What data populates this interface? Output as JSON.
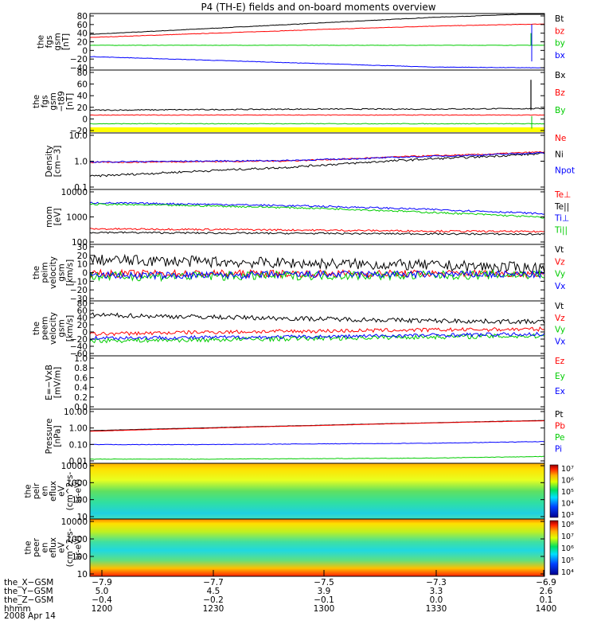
{
  "title": "P4 (TH-E) fields and on-board moments overview",
  "colors": {
    "black": "#000000",
    "red": "#ff0000",
    "green": "#00cc00",
    "blue": "#0000ff",
    "yellow": "#ffff00"
  },
  "chart_data": [
    {
      "type": "line",
      "ylabel": [
        "the",
        "fgs",
        "gsm",
        "[nT]"
      ],
      "yticks": [
        "80",
        "60",
        "40",
        "20",
        "0",
        "−20",
        "−40"
      ],
      "ylim": [
        -45,
        85
      ],
      "series": [
        {
          "name": "Bt",
          "color": "#000000",
          "values": [
            37,
            50,
            63,
            76,
            85
          ],
          "noise": 0.5
        },
        {
          "name": "bz",
          "color": "#ff0000",
          "values": [
            30,
            39,
            48,
            56,
            61
          ],
          "noise": 0.5
        },
        {
          "name": "by",
          "color": "#00cc00",
          "values": [
            12,
            12,
            12,
            12,
            12
          ],
          "noise": 0.4
        },
        {
          "name": "bx",
          "color": "#0000ff",
          "values": [
            -14,
            -22,
            -30,
            -38,
            -40
          ],
          "noise": 0.5
        }
      ]
    },
    {
      "type": "line",
      "ylabel": [
        "the",
        "fgs",
        "gsm",
        "−t89",
        "[nT]"
      ],
      "yticks": [
        "80",
        "60",
        "40",
        "20",
        "0",
        "−20"
      ],
      "ylim": [
        -28,
        88
      ],
      "series": [
        {
          "name": "Bx",
          "color": "#000000",
          "values": [
            14,
            15,
            16,
            16,
            17
          ],
          "noise": 1
        },
        {
          "name": "Bz",
          "color": "#ff0000",
          "values": [
            5,
            5,
            5,
            5,
            5
          ],
          "noise": 0.6
        },
        {
          "name": "By",
          "color": "#00cc00",
          "values": [
            -11,
            -11,
            -11,
            -11,
            -11
          ],
          "noise": 0.6
        }
      ]
    },
    {
      "type": "line",
      "ylabel": [
        "Density",
        "[cm−3]"
      ],
      "yticks": [
        "10.0",
        "1.0",
        "0.1"
      ],
      "ylim": [
        0.1,
        15
      ],
      "log": true,
      "series": [
        {
          "name": "Ne",
          "color": "#ff0000",
          "values": [
            1.1,
            1.15,
            1.2,
            1.25,
            1.5,
            1.9,
            2.2,
            2.8
          ],
          "noise": 0.02
        },
        {
          "name": "Ni",
          "color": "#000000",
          "values": [
            0.32,
            0.42,
            0.55,
            0.7,
            1.0,
            1.4,
            1.8,
            2.4
          ],
          "noise": 0.03
        },
        {
          "name": "Npot",
          "color": "#0000ff",
          "values": [
            1.15,
            1.2,
            1.25,
            1.3,
            1.5,
            1.8,
            2.1,
            2.6
          ],
          "noise": 0.02
        }
      ]
    },
    {
      "type": "line",
      "ylabel": [
        "mom",
        "[eV]"
      ],
      "yticks": [
        "10000",
        "1000",
        "100"
      ],
      "ylim": [
        40,
        12000
      ],
      "log": true,
      "series": [
        {
          "name": "Te⊥",
          "color": "#ff0000",
          "values": [
            200,
            190,
            175,
            160,
            150
          ],
          "noise": 0.03
        },
        {
          "name": "Te||",
          "color": "#000000",
          "values": [
            140,
            130,
            125,
            120,
            115
          ],
          "noise": 0.03
        },
        {
          "name": "Ti⊥",
          "color": "#0000ff",
          "values": [
            3000,
            2600,
            2100,
            1500,
            950
          ],
          "noise": 0.03
        },
        {
          "name": "Ti||",
          "color": "#00cc00",
          "values": [
            2600,
            2200,
            1700,
            1100,
            650
          ],
          "noise": 0.03
        }
      ]
    },
    {
      "type": "line",
      "ylabel": [
        "the",
        "peim",
        "velocity",
        "gsm",
        "[km/s]"
      ],
      "yticks": [
        "30",
        "20",
        "10",
        "0",
        "−10",
        "−20",
        "−30"
      ],
      "ylim": [
        -30,
        32
      ],
      "series": [
        {
          "name": "Vt",
          "color": "#000000",
          "values": [
            15,
            13,
            11,
            9,
            6
          ],
          "noise": 6
        },
        {
          "name": "Vz",
          "color": "#ff0000",
          "values": [
            0,
            0,
            0,
            0,
            0
          ],
          "noise": 4
        },
        {
          "name": "Vy",
          "color": "#00cc00",
          "values": [
            -3,
            -3,
            -2,
            -2,
            -1
          ],
          "noise": 5
        },
        {
          "name": "Vx",
          "color": "#0000ff",
          "values": [
            -2,
            -2,
            -1,
            -1,
            -1
          ],
          "noise": 4
        }
      ]
    },
    {
      "type": "line",
      "ylabel": [
        "the",
        "peem",
        "velocity",
        "gsm",
        "[km/s]"
      ],
      "yticks": [
        "80",
        "60",
        "40",
        "20",
        "0",
        "−20",
        "−40",
        "−60"
      ],
      "ylim": [
        -62,
        82
      ],
      "series": [
        {
          "name": "Vt",
          "color": "#000000",
          "values": [
            45,
            40,
            35,
            30,
            27
          ],
          "noise": 6
        },
        {
          "name": "Vz",
          "color": "#ff0000",
          "values": [
            -5,
            0,
            3,
            6,
            8
          ],
          "noise": 5
        },
        {
          "name": "Vy",
          "color": "#00cc00",
          "values": [
            -22,
            -20,
            -16,
            -12,
            -10
          ],
          "noise": 6
        },
        {
          "name": "Vx",
          "color": "#0000ff",
          "values": [
            -15,
            -14,
            -12,
            -8,
            -5
          ],
          "noise": 5
        }
      ]
    },
    {
      "type": "line",
      "ylabel": [
        "E=−VxB",
        "[mV/m]"
      ],
      "yticks": [
        "1.0",
        "0.8",
        "0.6",
        "0.4",
        "0.2",
        "0.0"
      ],
      "ylim": [
        0,
        1
      ],
      "series": [
        {
          "name": "Ez",
          "color": "#ff0000",
          "values": []
        },
        {
          "name": "Ey",
          "color": "#00cc00",
          "values": []
        },
        {
          "name": "Ex",
          "color": "#0000ff",
          "values": []
        }
      ]
    },
    {
      "type": "line",
      "ylabel": [
        "Pressure",
        "[nPa]"
      ],
      "yticks": [
        "10.00",
        "1.00",
        "0.10",
        "0.01"
      ],
      "ylim": [
        0.008,
        12
      ],
      "log": true,
      "series": [
        {
          "name": "Pt",
          "color": "#000000",
          "values": [
            0.65,
            0.95,
            1.35,
            1.9,
            2.6
          ],
          "noise": 0.005
        },
        {
          "name": "Pb",
          "color": "#ff0000",
          "values": [
            0.6,
            0.9,
            1.3,
            1.85,
            2.5
          ],
          "noise": 0.005
        },
        {
          "name": "Pe",
          "color": "#00cc00",
          "values": [
            0.014,
            0.014,
            0.015,
            0.016,
            0.02
          ],
          "noise": 0.01
        },
        {
          "name": "Pi",
          "color": "#0000ff",
          "values": [
            0.1,
            0.1,
            0.11,
            0.12,
            0.15
          ],
          "noise": 0.01
        }
      ]
    },
    {
      "type": "heatmap",
      "ylabel": [
        "the",
        "peir",
        "en",
        "eflux",
        "eV",
        "(cm^2-s-",
        "sr-eV)"
      ],
      "yticks": [
        "10000",
        "1000",
        "100",
        "10"
      ],
      "colorbar_ticks": [
        "10^7",
        "10^6",
        "10^5",
        "10^4",
        "10^3"
      ]
    },
    {
      "type": "heatmap",
      "ylabel": [
        "the",
        "peer",
        "en",
        "eflux",
        "eV",
        "(cm^2-s-",
        "sr-eV)"
      ],
      "yticks": [
        "10000",
        "1000",
        "100",
        "10"
      ],
      "colorbar_ticks": [
        "10^8",
        "10^7",
        "10^6",
        "10^5",
        "10^4"
      ]
    }
  ],
  "x_axis": {
    "rows": [
      {
        "label": "the_X−GSM",
        "values": [
          "−7.9",
          "−7.7",
          "−7.5",
          "−7.3",
          "−6.9"
        ]
      },
      {
        "label": "the_Y−GSM",
        "values": [
          "5.0",
          "4.5",
          "3.9",
          "3.3",
          "2.6"
        ]
      },
      {
        "label": "the_Z−GSM",
        "values": [
          "−0.4",
          "−0.2",
          "−0.1",
          "0.0",
          "0.1"
        ]
      },
      {
        "label": "hhmm",
        "values": [
          "1200",
          "1230",
          "1300",
          "1330",
          "1400"
        ]
      }
    ],
    "date": "2008 Apr 14"
  }
}
